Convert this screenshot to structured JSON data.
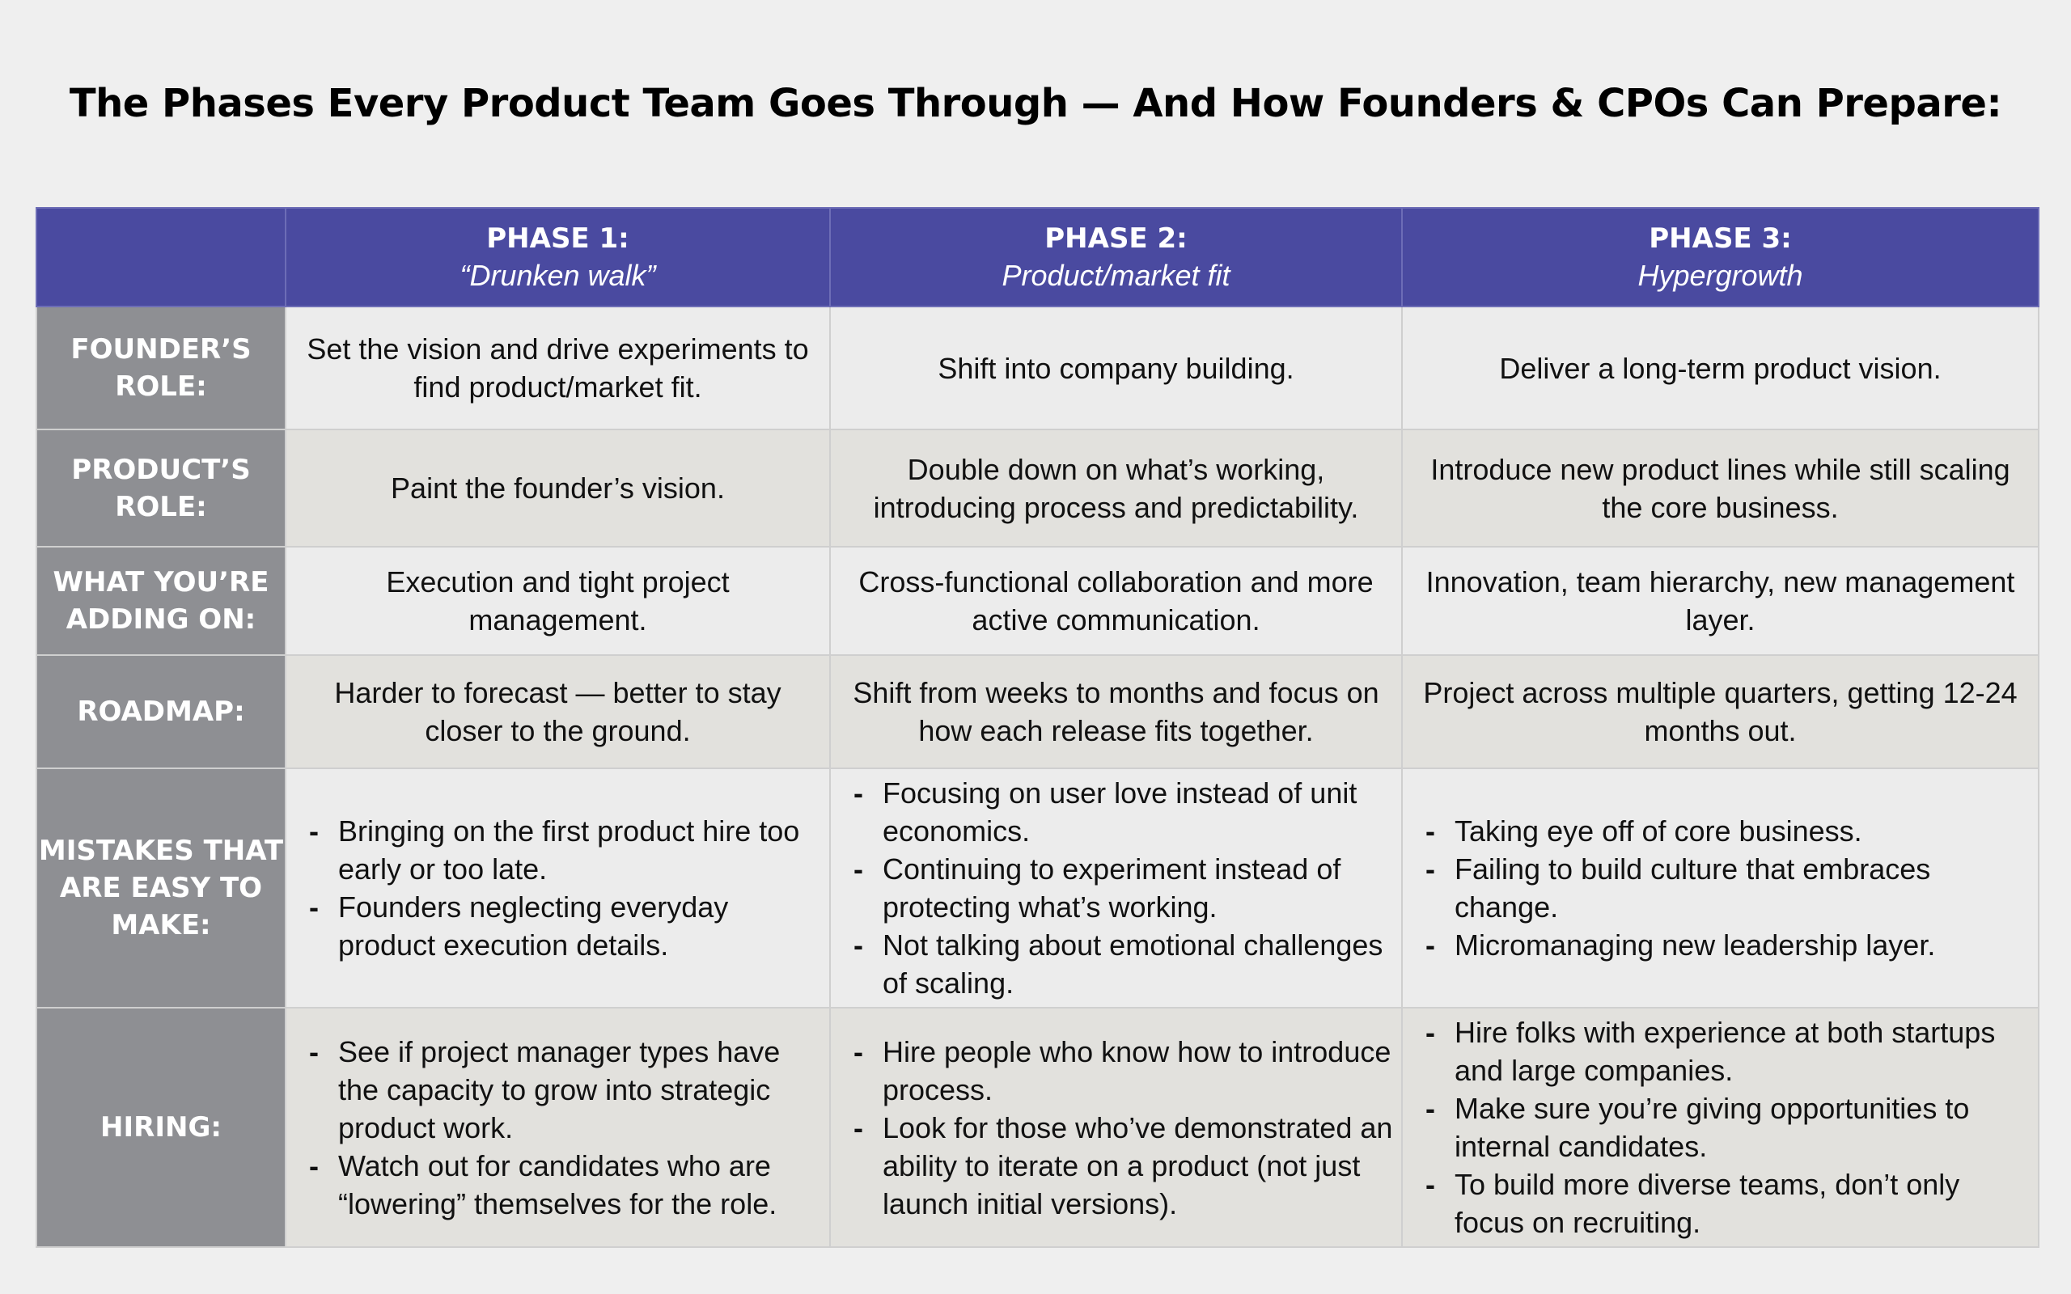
{
  "title": "The Phases Every Product Team Goes Through — And How Founders & CPOs Can Prepare:",
  "phases": [
    {
      "name": "PHASE 1:",
      "subtitle": "“Drunken walk”"
    },
    {
      "name": "PHASE 2:",
      "subtitle": "Product/market fit"
    },
    {
      "name": "PHASE 3:",
      "subtitle": "Hypergrowth"
    }
  ],
  "rows": {
    "founders_role": {
      "label": "FOUNDER’S ROLE:",
      "cells": [
        "Set the vision and drive experiments to find product/market fit.",
        "Shift into company building.",
        "Deliver a long-term product vision."
      ]
    },
    "products_role": {
      "label": "PRODUCT’S ROLE:",
      "cells": [
        "Paint the founder’s vision.",
        "Double down on what’s working, introducing process and predictability.",
        "Introduce new product lines while still scaling the core business."
      ]
    },
    "adding_on": {
      "label": "WHAT YOU’RE ADDING ON:",
      "cells": [
        "Execution and tight project management.",
        "Cross-functional collaboration and more active communication.",
        "Innovation, team hierarchy, new management layer."
      ]
    },
    "roadmap": {
      "label": "ROADMAP:",
      "cells": [
        "Harder to forecast — better to stay closer to the ground.",
        "Shift from weeks to months and focus on how each release fits together.",
        "Project across multiple quarters, getting 12-24 months out."
      ]
    },
    "mistakes": {
      "label": "MISTAKES THAT ARE EASY TO MAKE:",
      "cells": [
        [
          "Bringing on the first product hire too early or too late.",
          "Founders neglecting everyday product execution details."
        ],
        [
          "Focusing on user love instead of unit economics.",
          "Continuing to experiment instead of protecting what’s working.",
          "Not talking about emotional challenges of scaling."
        ],
        [
          "Taking eye off of core business.",
          "Failing to build culture that embraces change.",
          "Micromanaging new leadership layer."
        ]
      ]
    },
    "hiring": {
      "label": "HIRING:",
      "cells": [
        [
          "See if project manager types have the capacity to grow into strategic product work.",
          "Watch out for candidates who are “lowering” themselves for the role."
        ],
        [
          "Hire people who know how to introduce process.",
          "Look for those who’ve demonstrated an ability to iterate on a product (not just launch initial versions)."
        ],
        [
          "Hire folks with experience at both startups and large companies.",
          "Make sure you’re giving opportunities to internal candidates.",
          "To build more diverse teams, don’t only focus on recruiting."
        ]
      ]
    }
  }
}
